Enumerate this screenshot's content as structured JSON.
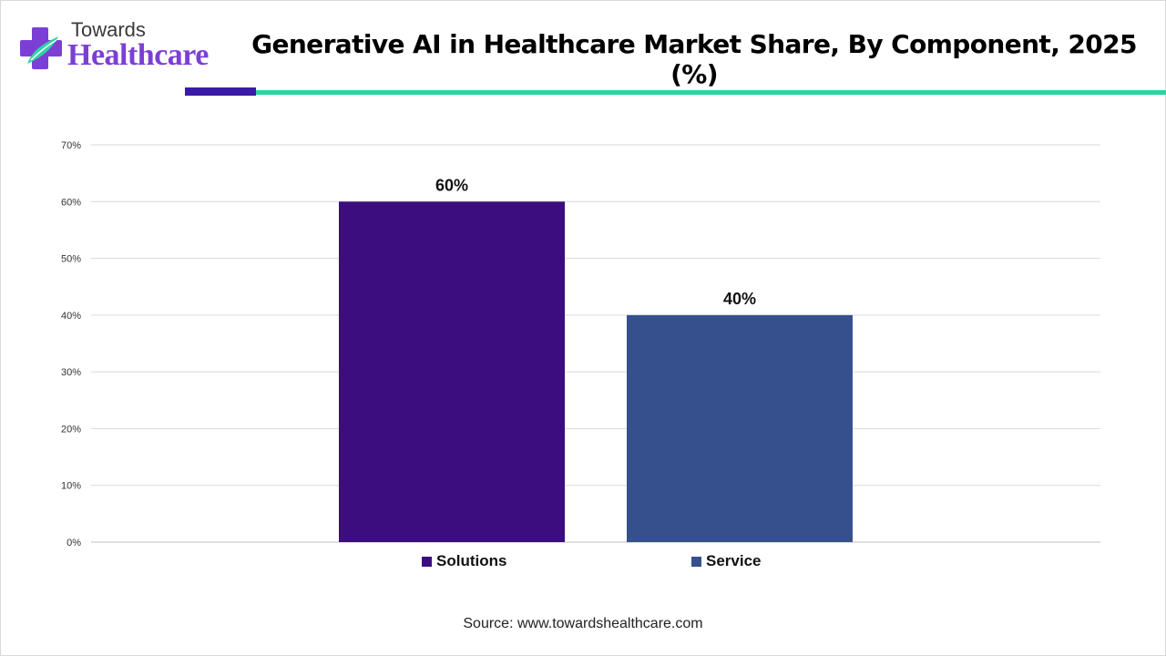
{
  "logo": {
    "top_text": "Towards",
    "bottom_text": "Healthcare"
  },
  "colors": {
    "accent_purple": "#3b1aa8",
    "accent_teal": "#2fd3a3",
    "brand_text": "#7b3fd6"
  },
  "chart_data": {
    "type": "bar",
    "title": "Generative AI in Healthcare Market Share, By Component, 2025 (%)",
    "categories": [
      "Solutions",
      "Service"
    ],
    "values": [
      60,
      40
    ],
    "data_labels": [
      "60%",
      "40%"
    ],
    "colors": [
      "#3c0d7e",
      "#36508d"
    ],
    "ylim": [
      0,
      70
    ],
    "yticks": [
      0,
      10,
      20,
      30,
      40,
      50,
      60,
      70
    ],
    "ytick_labels": [
      "0%",
      "10%",
      "20%",
      "30%",
      "40%",
      "50%",
      "60%",
      "70%"
    ],
    "grid": true,
    "legend": "bottom",
    "xlabel": "",
    "ylabel": ""
  },
  "source": "Source: www.towardshealthcare.com"
}
